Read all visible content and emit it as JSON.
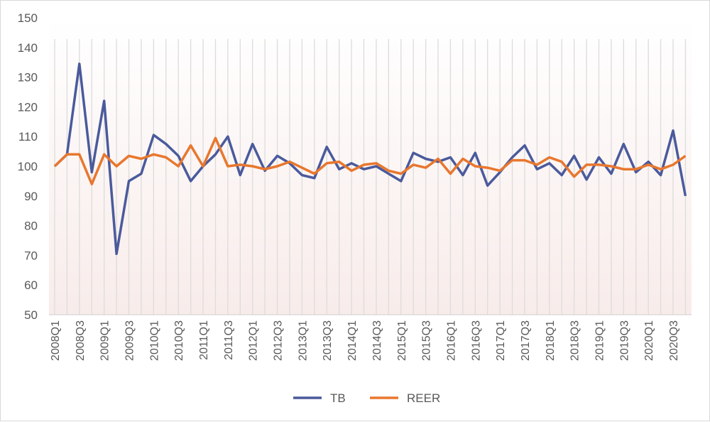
{
  "chart_data": {
    "type": "line",
    "title": "",
    "xlabel": "",
    "ylabel": "",
    "ylim": [
      50,
      150
    ],
    "yticks": [
      50,
      60,
      70,
      80,
      90,
      100,
      110,
      120,
      130,
      140,
      150
    ],
    "grid": "vertical category lines",
    "legend": "bottom",
    "x": [
      "2008Q1",
      "2008Q2",
      "2008Q3",
      "2008Q4",
      "2009Q1",
      "2009Q2",
      "2009Q3",
      "2009Q4",
      "2010Q1",
      "2010Q2",
      "2010Q3",
      "2010Q4",
      "2011Q1",
      "2011Q2",
      "2011Q3",
      "2011Q4",
      "2012Q1",
      "2012Q2",
      "2012Q3",
      "2012Q4",
      "2013Q1",
      "2013Q2",
      "2013Q3",
      "2013Q4",
      "2014Q1",
      "2014Q2",
      "2014Q3",
      "2014Q4",
      "2015Q1",
      "2015Q2",
      "2015Q3",
      "2015Q4",
      "2016Q1",
      "2016Q2",
      "2016Q3",
      "2016Q4",
      "2017Q1",
      "2017Q2",
      "2017Q3",
      "2017Q4",
      "2018Q1",
      "2018Q2",
      "2018Q3",
      "2018Q4",
      "2019Q1",
      "2019Q2",
      "2019Q3",
      "2019Q4",
      "2020Q1",
      "2020Q2",
      "2020Q3",
      "2020Q4"
    ],
    "xtick_labels": [
      "2008Q1",
      "2008Q3",
      "2009Q1",
      "2009Q3",
      "2010Q1",
      "2010Q3",
      "2011Q1",
      "2011Q3",
      "2012Q1",
      "2012Q3",
      "2013Q1",
      "2013Q3",
      "2014Q1",
      "2014Q3",
      "2015Q1",
      "2015Q3",
      "2016Q1",
      "2016Q3",
      "2017Q1",
      "2017Q3",
      "2018Q1",
      "2018Q3",
      "2019Q1",
      "2019Q3",
      "2020Q1",
      "2020Q3"
    ],
    "series": [
      {
        "name": "TB",
        "color": "#4a5a9c",
        "values": [
          100,
          104,
          134.5,
          98,
          122,
          70.5,
          95,
          97.5,
          110.5,
          107.5,
          103.5,
          95,
          100,
          104,
          110,
          97,
          107.5,
          98.5,
          103.5,
          101,
          97,
          96,
          106.5,
          99,
          101,
          99,
          100,
          97.5,
          95,
          104.5,
          102.5,
          101.5,
          103,
          97,
          104.5,
          93.5,
          98,
          103,
          107,
          99,
          101,
          97,
          103.5,
          95.5,
          103,
          97.5,
          107.5,
          98,
          101.5,
          97,
          112,
          90
        ]
      },
      {
        "name": "REER",
        "color": "#e8772e",
        "values": [
          100,
          104,
          104,
          94,
          104,
          100,
          103.5,
          102.5,
          104,
          103,
          100,
          107,
          100,
          109.5,
          100,
          100.5,
          100,
          99,
          100,
          101.5,
          99.5,
          97.5,
          101,
          101.5,
          98.5,
          100.5,
          101,
          98.5,
          97.5,
          100.5,
          99.5,
          102.5,
          97.5,
          102.5,
          100,
          99.5,
          98.5,
          102,
          102,
          100.5,
          103,
          101.5,
          96.5,
          100.5,
          100.5,
          100,
          99,
          99,
          100.5,
          99,
          100.5,
          103.5
        ]
      }
    ]
  }
}
